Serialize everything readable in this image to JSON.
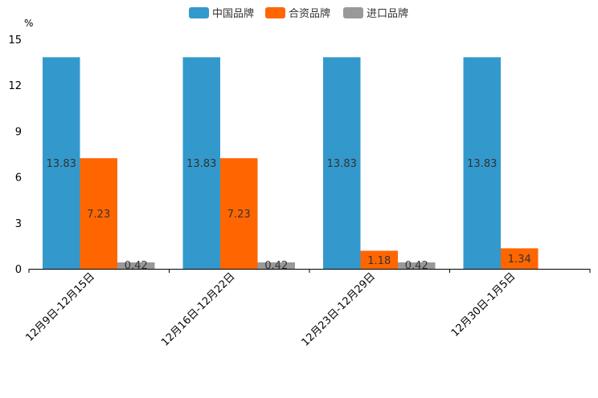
{
  "chart_data": {
    "type": "bar",
    "unit": "%",
    "ylim": [
      0,
      15
    ],
    "yticks": [
      0,
      3,
      6,
      9,
      12,
      15
    ],
    "categories": [
      "12月9日-12月15日",
      "12月16日-12月22日",
      "12月23日-12月29日",
      "12月30日-1月5日"
    ],
    "series": [
      {
        "name": "中国品牌",
        "color": "#3399cc",
        "values": [
          13.83,
          13.83,
          13.83,
          13.83
        ],
        "labels": [
          "13.83",
          "13.83",
          "13.83",
          "13.83"
        ]
      },
      {
        "name": "合资品牌",
        "color": "#ff6600",
        "values": [
          7.23,
          7.23,
          1.18,
          1.34
        ],
        "labels": [
          "7.23",
          "7.23",
          "1.18",
          "1.34"
        ]
      },
      {
        "name": "进口品牌",
        "color": "#999999",
        "values": [
          0.42,
          0.42,
          0.42,
          null
        ],
        "labels": [
          "0.42",
          "0.42",
          "0.42",
          null
        ]
      }
    ]
  }
}
